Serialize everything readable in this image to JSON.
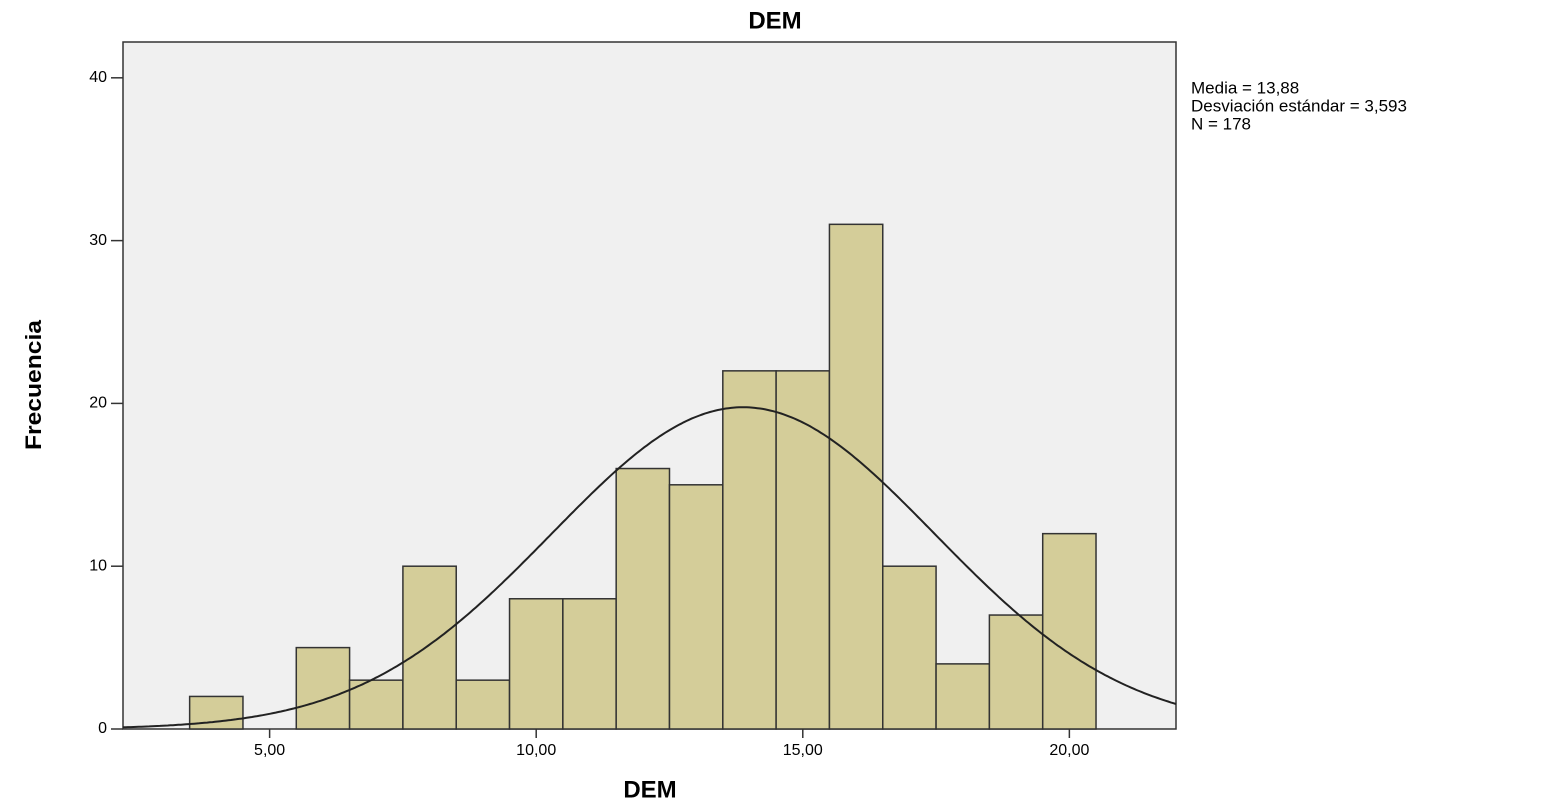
{
  "chart_data": {
    "type": "histogram",
    "title": "DEM",
    "x_label": "DEM",
    "y_label": "Frecuencia",
    "bins": [
      3.5,
      4.5,
      5.5,
      6.5,
      7.5,
      8.5,
      9.5,
      10.5,
      11.5,
      12.5,
      13.5,
      14.5,
      15.5,
      16.5,
      17.5,
      18.5,
      19.5,
      20.5
    ],
    "values": [
      2,
      0,
      5,
      3,
      10,
      3,
      8,
      8,
      16,
      15,
      22,
      22,
      31,
      10,
      4,
      7,
      12
    ],
    "color": "#d4cd99",
    "xlim": [
      2.25,
      22.0
    ],
    "ylim": [
      0,
      42.2
    ],
    "xticks": [
      {
        "value": 5,
        "label": "5,00"
      },
      {
        "value": 10,
        "label": "10,00"
      },
      {
        "value": 15,
        "label": "15,00"
      },
      {
        "value": 20,
        "label": "20,00"
      }
    ],
    "yticks": [
      0,
      10,
      20,
      30,
      40
    ],
    "stats": [
      {
        "value": 13.88,
        "label": "Media = 13,88"
      },
      {
        "value": 3.593,
        "label": "Desviación estándar = 3,593"
      },
      {
        "value": 178,
        "label": "N = 178"
      }
    ]
  }
}
